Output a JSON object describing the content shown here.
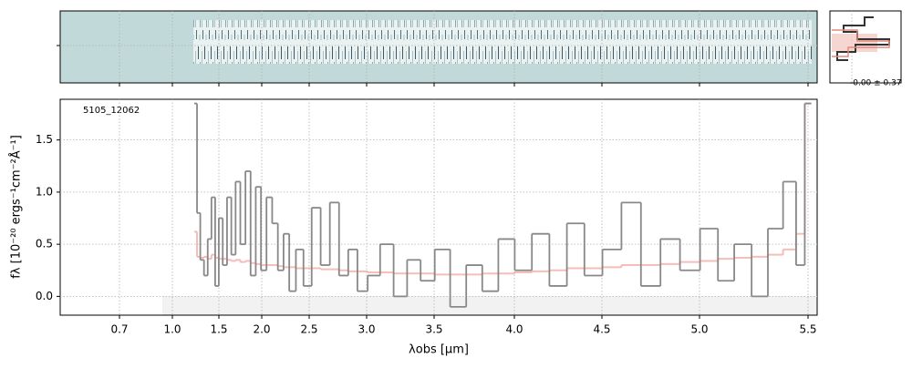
{
  "chart_data": {
    "type": "step",
    "ylabel": "fλ [10⁻²⁰ ergs⁻¹cm⁻²Å⁻¹]",
    "xlabel": "λobs [μm]",
    "annotation": "5105_12062",
    "profile_label": "-0.00 ± 0.37",
    "xlim": [
      0.4,
      5.54
    ],
    "ylim": [
      -0.18,
      1.89
    ],
    "xticks": [
      0.7,
      {
        "value": 1,
        "label": "1.0"
      },
      1.5,
      {
        "value": 2,
        "label": "2.0"
      },
      2.5,
      {
        "value": 3,
        "label": "3.0"
      },
      3.5,
      {
        "value": 4,
        "label": "4.0"
      },
      4.5,
      {
        "value": 5,
        "label": "5.0"
      },
      5.5
    ],
    "yticks": [
      {
        "value": 0,
        "label": "0.0"
      },
      0.5,
      {
        "value": 1,
        "label": "1.0"
      },
      1.5
    ],
    "grid": true,
    "x": [
      1.25,
      1.28,
      1.32,
      1.36,
      1.4,
      1.44,
      1.48,
      1.52,
      1.57,
      1.62,
      1.67,
      1.72,
      1.78,
      1.84,
      1.9,
      1.96,
      2.02,
      2.08,
      2.14,
      2.2,
      2.26,
      2.32,
      2.4,
      2.48,
      2.56,
      2.64,
      2.72,
      2.8,
      2.88,
      2.96,
      3.05,
      3.15,
      3.25,
      3.35,
      3.45,
      3.55,
      3.65,
      3.75,
      3.85,
      3.95,
      4.05,
      4.15,
      4.25,
      4.35,
      4.45,
      4.55,
      4.65,
      4.75,
      4.85,
      4.95,
      5.05,
      5.12,
      5.2,
      5.28,
      5.35,
      5.42,
      5.47,
      5.5
    ],
    "series": [
      {
        "color": "#f4a7a2",
        "values": [
          0.62,
          0.38,
          0.37,
          0.38,
          0.36,
          0.4,
          0.37,
          0.36,
          0.36,
          0.35,
          0.34,
          0.35,
          0.33,
          0.34,
          0.32,
          0.31,
          0.3,
          0.3,
          0.3,
          0.29,
          0.28,
          0.28,
          0.27,
          0.27,
          0.27,
          0.26,
          0.26,
          0.25,
          0.24,
          0.24,
          0.23,
          0.23,
          0.22,
          0.22,
          0.22,
          0.21,
          0.21,
          0.21,
          0.22,
          0.22,
          0.23,
          0.24,
          0.25,
          0.27,
          0.27,
          0.28,
          0.3,
          0.3,
          0.31,
          0.33,
          0.34,
          0.36,
          0.37,
          0.38,
          0.4,
          0.45,
          0.6,
          1.85
        ]
      },
      {
        "color": "#888888",
        "values": [
          1.85,
          0.8,
          0.35,
          0.2,
          0.55,
          0.95,
          0.1,
          0.75,
          0.3,
          0.95,
          0.4,
          1.1,
          0.5,
          1.2,
          0.2,
          1.05,
          0.25,
          0.95,
          0.7,
          0.25,
          0.6,
          0.05,
          0.45,
          0.1,
          0.85,
          0.3,
          0.9,
          0.2,
          0.45,
          0.05,
          0.2,
          0.5,
          0.0,
          0.35,
          0.15,
          0.45,
          -0.1,
          0.3,
          0.05,
          0.55,
          0.25,
          0.6,
          0.1,
          0.7,
          0.2,
          0.45,
          0.9,
          0.1,
          0.55,
          0.25,
          0.65,
          0.15,
          0.5,
          0.0,
          0.65,
          1.1,
          0.3,
          1.85
        ]
      }
    ]
  }
}
